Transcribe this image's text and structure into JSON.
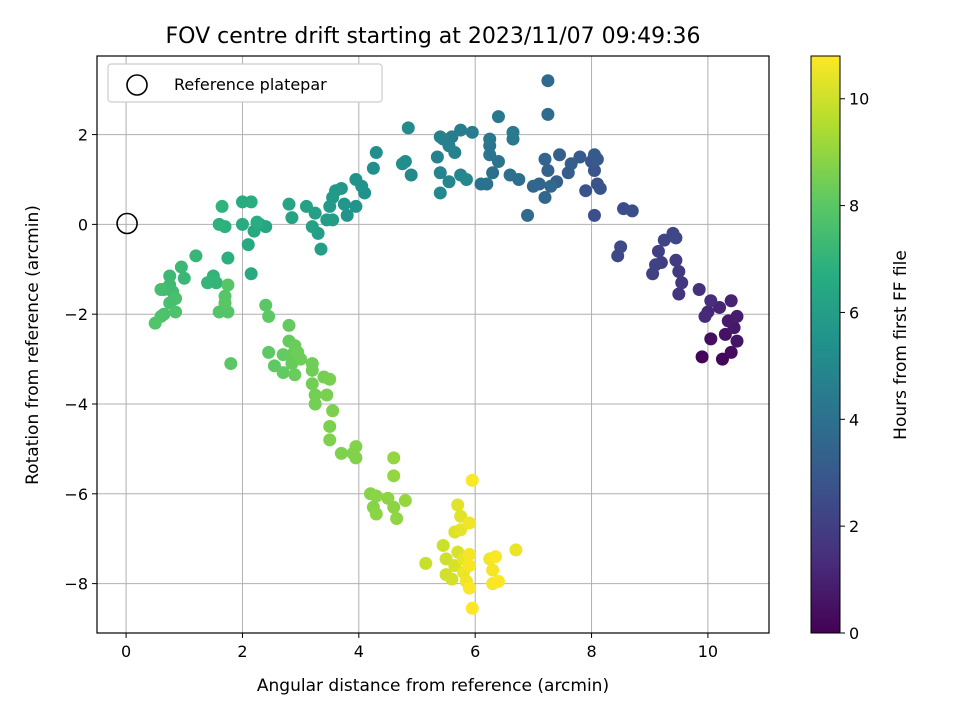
{
  "chart_data": {
    "type": "scatter",
    "title": "FOV centre drift starting at 2023/11/07 09:49:36",
    "xlabel": "Angular distance from reference (arcmin)",
    "ylabel": "Rotation from reference (arcmin)",
    "xlim": [
      -0.5,
      11.05
    ],
    "ylim": [
      -9.1,
      3.75
    ],
    "xticks": [
      0,
      2,
      4,
      6,
      8,
      10
    ],
    "yticks": [
      -8,
      -6,
      -4,
      -2,
      0,
      2
    ],
    "grid": true,
    "legend": {
      "placement": "upper-left",
      "entries": [
        "Reference platepar"
      ]
    },
    "reference_point": {
      "label": "Reference platepar",
      "x": 0,
      "y": 0
    },
    "colorbar": {
      "label": "Hours from first FF file",
      "colormap": "viridis",
      "range": [
        0,
        10.8
      ],
      "ticks": [
        0,
        2,
        4,
        6,
        8,
        10
      ]
    },
    "series": [
      {
        "points": [
          {
            "x": 9.9,
            "y": -2.95,
            "c": 0.1
          },
          {
            "x": 10.25,
            "y": -3.0,
            "c": 0.2
          },
          {
            "x": 10.4,
            "y": -2.85,
            "c": 0.3
          },
          {
            "x": 10.05,
            "y": -2.55,
            "c": 0.4
          },
          {
            "x": 10.3,
            "y": -2.45,
            "c": 0.5
          },
          {
            "x": 10.5,
            "y": -2.6,
            "c": 0.6
          },
          {
            "x": 10.45,
            "y": -2.3,
            "c": 0.7
          },
          {
            "x": 10.35,
            "y": -2.15,
            "c": 0.8
          },
          {
            "x": 10.5,
            "y": -2.05,
            "c": 0.9
          },
          {
            "x": 10.4,
            "y": -1.7,
            "c": 1.0
          },
          {
            "x": 10.2,
            "y": -1.85,
            "c": 1.1
          },
          {
            "x": 10.0,
            "y": -1.95,
            "c": 1.2
          },
          {
            "x": 9.95,
            "y": -2.05,
            "c": 1.3
          },
          {
            "x": 10.05,
            "y": -1.7,
            "c": 1.35
          },
          {
            "x": 9.85,
            "y": -1.45,
            "c": 1.5
          },
          {
            "x": 9.5,
            "y": -1.55,
            "c": 1.6
          },
          {
            "x": 9.55,
            "y": -1.3,
            "c": 1.7
          },
          {
            "x": 9.5,
            "y": -1.05,
            "c": 1.8
          },
          {
            "x": 9.45,
            "y": -0.8,
            "c": 1.85
          },
          {
            "x": 9.2,
            "y": -0.85,
            "c": 1.9
          },
          {
            "x": 9.15,
            "y": -0.6,
            "c": 2.0
          },
          {
            "x": 9.05,
            "y": -1.1,
            "c": 2.05
          },
          {
            "x": 9.1,
            "y": -0.9,
            "c": 2.1
          },
          {
            "x": 9.25,
            "y": -0.35,
            "c": 2.2
          },
          {
            "x": 9.4,
            "y": -0.2,
            "c": 2.25
          },
          {
            "x": 9.45,
            "y": -0.3,
            "c": 2.3
          },
          {
            "x": 8.45,
            "y": -0.7,
            "c": 2.35
          },
          {
            "x": 8.5,
            "y": -0.5,
            "c": 2.4
          },
          {
            "x": 8.55,
            "y": 0.35,
            "c": 2.5
          },
          {
            "x": 8.7,
            "y": 0.3,
            "c": 2.55
          },
          {
            "x": 8.05,
            "y": 0.2,
            "c": 2.6
          },
          {
            "x": 7.9,
            "y": 0.75,
            "c": 2.7
          },
          {
            "x": 8.1,
            "y": 0.9,
            "c": 2.75
          },
          {
            "x": 8.15,
            "y": 0.8,
            "c": 2.8
          },
          {
            "x": 8.05,
            "y": 1.2,
            "c": 2.85
          },
          {
            "x": 8.0,
            "y": 1.4,
            "c": 2.9
          },
          {
            "x": 8.1,
            "y": 1.45,
            "c": 3.0
          },
          {
            "x": 8.05,
            "y": 1.55,
            "c": 3.05
          },
          {
            "x": 7.8,
            "y": 1.5,
            "c": 3.1
          },
          {
            "x": 7.6,
            "y": 1.15,
            "c": 3.15
          },
          {
            "x": 7.65,
            "y": 1.35,
            "c": 3.2
          },
          {
            "x": 7.45,
            "y": 1.55,
            "c": 3.3
          },
          {
            "x": 7.4,
            "y": 0.95,
            "c": 3.35
          },
          {
            "x": 7.25,
            "y": 1.2,
            "c": 3.4
          },
          {
            "x": 7.2,
            "y": 1.45,
            "c": 3.45
          },
          {
            "x": 7.1,
            "y": 0.9,
            "c": 3.5
          },
          {
            "x": 7.0,
            "y": 0.85,
            "c": 3.55
          },
          {
            "x": 7.2,
            "y": 0.6,
            "c": 3.6
          },
          {
            "x": 7.3,
            "y": 0.85,
            "c": 3.65
          },
          {
            "x": 6.9,
            "y": 0.2,
            "c": 3.7
          },
          {
            "x": 7.25,
            "y": 3.2,
            "c": 3.75
          },
          {
            "x": 7.25,
            "y": 2.45,
            "c": 3.8
          },
          {
            "x": 6.75,
            "y": 1.0,
            "c": 3.85
          },
          {
            "x": 6.6,
            "y": 1.1,
            "c": 3.9
          },
          {
            "x": 6.3,
            "y": 1.15,
            "c": 3.95
          },
          {
            "x": 6.2,
            "y": 0.9,
            "c": 4.0
          },
          {
            "x": 6.1,
            "y": 0.9,
            "c": 4.05
          },
          {
            "x": 6.4,
            "y": 1.4,
            "c": 4.1
          },
          {
            "x": 6.25,
            "y": 1.75,
            "c": 4.15
          },
          {
            "x": 6.25,
            "y": 1.55,
            "c": 4.2
          },
          {
            "x": 6.25,
            "y": 1.9,
            "c": 4.25
          },
          {
            "x": 6.4,
            "y": 2.4,
            "c": 4.3
          },
          {
            "x": 6.65,
            "y": 1.9,
            "c": 4.35
          },
          {
            "x": 6.65,
            "y": 2.05,
            "c": 4.4
          },
          {
            "x": 5.95,
            "y": 2.05,
            "c": 4.45
          },
          {
            "x": 5.75,
            "y": 2.1,
            "c": 4.5
          },
          {
            "x": 5.6,
            "y": 1.95,
            "c": 4.55
          },
          {
            "x": 5.55,
            "y": 1.75,
            "c": 4.6
          },
          {
            "x": 5.45,
            "y": 1.9,
            "c": 4.65
          },
          {
            "x": 5.4,
            "y": 1.95,
            "c": 4.7
          },
          {
            "x": 5.35,
            "y": 1.5,
            "c": 4.75
          },
          {
            "x": 5.65,
            "y": 1.6,
            "c": 4.8
          },
          {
            "x": 5.4,
            "y": 1.15,
            "c": 4.85
          },
          {
            "x": 5.55,
            "y": 0.95,
            "c": 4.9
          },
          {
            "x": 5.75,
            "y": 1.1,
            "c": 4.95
          },
          {
            "x": 5.85,
            "y": 1.0,
            "c": 5.0
          },
          {
            "x": 5.4,
            "y": 0.7,
            "c": 5.05
          },
          {
            "x": 4.9,
            "y": 1.1,
            "c": 5.1
          },
          {
            "x": 4.85,
            "y": 2.15,
            "c": 5.15
          },
          {
            "x": 4.8,
            "y": 1.4,
            "c": 5.2
          },
          {
            "x": 4.75,
            "y": 1.35,
            "c": 5.25
          },
          {
            "x": 4.3,
            "y": 1.6,
            "c": 5.3
          },
          {
            "x": 4.25,
            "y": 1.25,
            "c": 5.35
          },
          {
            "x": 4.1,
            "y": 0.7,
            "c": 5.4
          },
          {
            "x": 4.05,
            "y": 0.85,
            "c": 5.45
          },
          {
            "x": 3.95,
            "y": 1.0,
            "c": 5.5
          },
          {
            "x": 3.95,
            "y": 0.4,
            "c": 5.55
          },
          {
            "x": 3.8,
            "y": 0.2,
            "c": 5.6
          },
          {
            "x": 3.75,
            "y": 0.45,
            "c": 5.65
          },
          {
            "x": 3.7,
            "y": 0.8,
            "c": 5.7
          },
          {
            "x": 3.55,
            "y": 0.6,
            "c": 5.75
          },
          {
            "x": 3.6,
            "y": 0.75,
            "c": 5.8
          },
          {
            "x": 3.5,
            "y": 0.4,
            "c": 5.85
          },
          {
            "x": 3.45,
            "y": 0.1,
            "c": 5.9
          },
          {
            "x": 3.55,
            "y": 0.1,
            "c": 5.95
          },
          {
            "x": 3.3,
            "y": -0.2,
            "c": 6.0
          },
          {
            "x": 3.35,
            "y": -0.55,
            "c": 6.05
          },
          {
            "x": 3.25,
            "y": 0.25,
            "c": 6.1
          },
          {
            "x": 3.2,
            "y": -0.05,
            "c": 6.15
          },
          {
            "x": 3.1,
            "y": 0.4,
            "c": 6.2
          },
          {
            "x": 2.85,
            "y": 0.15,
            "c": 6.25
          },
          {
            "x": 2.8,
            "y": 0.45,
            "c": 6.3
          },
          {
            "x": 2.4,
            "y": -0.05,
            "c": 6.35
          },
          {
            "x": 2.3,
            "y": 0.0,
            "c": 6.4
          },
          {
            "x": 2.2,
            "y": -0.15,
            "c": 6.45
          },
          {
            "x": 2.1,
            "y": -0.45,
            "c": 6.5
          },
          {
            "x": 2.15,
            "y": -1.1,
            "c": 6.55
          },
          {
            "x": 2.0,
            "y": 0.0,
            "c": 6.6
          },
          {
            "x": 2.0,
            "y": 0.5,
            "c": 6.65
          },
          {
            "x": 2.15,
            "y": 0.5,
            "c": 6.7
          },
          {
            "x": 2.25,
            "y": 0.05,
            "c": 6.75
          },
          {
            "x": 1.75,
            "y": -0.75,
            "c": 6.8
          },
          {
            "x": 1.7,
            "y": -0.05,
            "c": 6.85
          },
          {
            "x": 1.6,
            "y": 0.0,
            "c": 6.9
          },
          {
            "x": 1.65,
            "y": 0.4,
            "c": 6.95
          },
          {
            "x": 1.5,
            "y": -1.15,
            "c": 7.0
          },
          {
            "x": 1.55,
            "y": -1.3,
            "c": 7.05
          },
          {
            "x": 1.4,
            "y": -1.3,
            "c": 7.1
          },
          {
            "x": 1.2,
            "y": -0.7,
            "c": 7.15
          },
          {
            "x": 1.0,
            "y": -1.2,
            "c": 7.2
          },
          {
            "x": 0.95,
            "y": -0.95,
            "c": 7.25
          },
          {
            "x": 0.75,
            "y": -1.15,
            "c": 7.3
          },
          {
            "x": 0.75,
            "y": -1.35,
            "c": 7.35
          },
          {
            "x": 0.8,
            "y": -1.5,
            "c": 7.4
          },
          {
            "x": 0.65,
            "y": -1.45,
            "c": 7.45
          },
          {
            "x": 0.6,
            "y": -1.45,
            "c": 7.5
          },
          {
            "x": 0.75,
            "y": -1.75,
            "c": 7.55
          },
          {
            "x": 0.85,
            "y": -1.65,
            "c": 7.6
          },
          {
            "x": 0.65,
            "y": -2.0,
            "c": 7.65
          },
          {
            "x": 0.6,
            "y": -2.05,
            "c": 7.7
          },
          {
            "x": 0.85,
            "y": -1.95,
            "c": 7.75
          },
          {
            "x": 0.5,
            "y": -2.2,
            "c": 7.8
          },
          {
            "x": 1.6,
            "y": -1.95,
            "c": 7.85
          },
          {
            "x": 1.75,
            "y": -1.95,
            "c": 7.85
          },
          {
            "x": 1.7,
            "y": -1.6,
            "c": 7.9
          },
          {
            "x": 1.75,
            "y": -1.35,
            "c": 7.9
          },
          {
            "x": 1.7,
            "y": -1.75,
            "c": 7.95
          },
          {
            "x": 1.8,
            "y": -3.1,
            "c": 8.0
          },
          {
            "x": 2.4,
            "y": -1.8,
            "c": 8.0
          },
          {
            "x": 2.45,
            "y": -2.05,
            "c": 8.05
          },
          {
            "x": 2.45,
            "y": -2.85,
            "c": 8.1
          },
          {
            "x": 2.55,
            "y": -3.15,
            "c": 8.1
          },
          {
            "x": 2.7,
            "y": -3.3,
            "c": 8.15
          },
          {
            "x": 2.7,
            "y": -2.9,
            "c": 8.15
          },
          {
            "x": 2.8,
            "y": -2.25,
            "c": 8.2
          },
          {
            "x": 2.8,
            "y": -2.6,
            "c": 8.2
          },
          {
            "x": 2.85,
            "y": -2.9,
            "c": 8.25
          },
          {
            "x": 2.85,
            "y": -3.1,
            "c": 8.25
          },
          {
            "x": 2.9,
            "y": -3.35,
            "c": 8.3
          },
          {
            "x": 2.9,
            "y": -2.7,
            "c": 8.3
          },
          {
            "x": 2.95,
            "y": -2.85,
            "c": 8.35
          },
          {
            "x": 3.0,
            "y": -3.0,
            "c": 8.35
          },
          {
            "x": 3.2,
            "y": -3.1,
            "c": 8.4
          },
          {
            "x": 3.2,
            "y": -3.25,
            "c": 8.4
          },
          {
            "x": 3.2,
            "y": -3.55,
            "c": 8.45
          },
          {
            "x": 3.25,
            "y": -3.8,
            "c": 8.45
          },
          {
            "x": 3.25,
            "y": -4.0,
            "c": 8.5
          },
          {
            "x": 3.4,
            "y": -3.4,
            "c": 8.5
          },
          {
            "x": 3.45,
            "y": -3.8,
            "c": 8.55
          },
          {
            "x": 3.5,
            "y": -3.45,
            "c": 8.55
          },
          {
            "x": 3.55,
            "y": -4.15,
            "c": 8.6
          },
          {
            "x": 3.5,
            "y": -4.5,
            "c": 8.6
          },
          {
            "x": 3.5,
            "y": -4.8,
            "c": 8.65
          },
          {
            "x": 3.7,
            "y": -5.1,
            "c": 8.65
          },
          {
            "x": 3.9,
            "y": -5.1,
            "c": 8.7
          },
          {
            "x": 3.95,
            "y": -5.2,
            "c": 8.7
          },
          {
            "x": 3.95,
            "y": -4.95,
            "c": 8.75
          },
          {
            "x": 4.2,
            "y": -6.0,
            "c": 8.8
          },
          {
            "x": 4.25,
            "y": -6.3,
            "c": 8.8
          },
          {
            "x": 4.3,
            "y": -6.45,
            "c": 8.85
          },
          {
            "x": 4.3,
            "y": -6.05,
            "c": 8.85
          },
          {
            "x": 4.5,
            "y": -6.1,
            "c": 8.9
          },
          {
            "x": 4.6,
            "y": -6.3,
            "c": 8.9
          },
          {
            "x": 4.65,
            "y": -6.55,
            "c": 8.95
          },
          {
            "x": 4.6,
            "y": -5.2,
            "c": 9.0
          },
          {
            "x": 4.6,
            "y": -5.6,
            "c": 9.0
          },
          {
            "x": 4.8,
            "y": -6.15,
            "c": 9.05
          },
          {
            "x": 5.15,
            "y": -7.55,
            "c": 9.9
          },
          {
            "x": 5.45,
            "y": -7.15,
            "c": 9.95
          },
          {
            "x": 5.5,
            "y": -7.45,
            "c": 10.0
          },
          {
            "x": 5.5,
            "y": -7.8,
            "c": 10.05
          },
          {
            "x": 5.6,
            "y": -7.9,
            "c": 10.1
          },
          {
            "x": 5.65,
            "y": -7.6,
            "c": 10.15
          },
          {
            "x": 5.7,
            "y": -7.3,
            "c": 10.2
          },
          {
            "x": 5.65,
            "y": -6.85,
            "c": 10.25
          },
          {
            "x": 5.7,
            "y": -6.25,
            "c": 10.3
          },
          {
            "x": 5.75,
            "y": -6.5,
            "c": 10.35
          },
          {
            "x": 5.75,
            "y": -6.8,
            "c": 10.4
          },
          {
            "x": 5.8,
            "y": -7.45,
            "c": 10.45
          },
          {
            "x": 5.8,
            "y": -7.75,
            "c": 10.5
          },
          {
            "x": 5.85,
            "y": -7.95,
            "c": 10.55
          },
          {
            "x": 5.9,
            "y": -6.65,
            "c": 10.6
          },
          {
            "x": 5.9,
            "y": -7.35,
            "c": 10.65
          },
          {
            "x": 5.9,
            "y": -7.6,
            "c": 10.7
          },
          {
            "x": 5.9,
            "y": -8.1,
            "c": 10.75
          },
          {
            "x": 5.95,
            "y": -5.7,
            "c": 10.75
          },
          {
            "x": 5.95,
            "y": -8.55,
            "c": 10.8
          },
          {
            "x": 6.25,
            "y": -7.45,
            "c": 10.6
          },
          {
            "x": 6.3,
            "y": -7.7,
            "c": 10.65
          },
          {
            "x": 6.3,
            "y": -8.0,
            "c": 10.7
          },
          {
            "x": 6.35,
            "y": -7.4,
            "c": 10.75
          },
          {
            "x": 6.4,
            "y": -7.95,
            "c": 10.8
          },
          {
            "x": 6.7,
            "y": -7.25,
            "c": 10.5
          }
        ]
      }
    ]
  }
}
